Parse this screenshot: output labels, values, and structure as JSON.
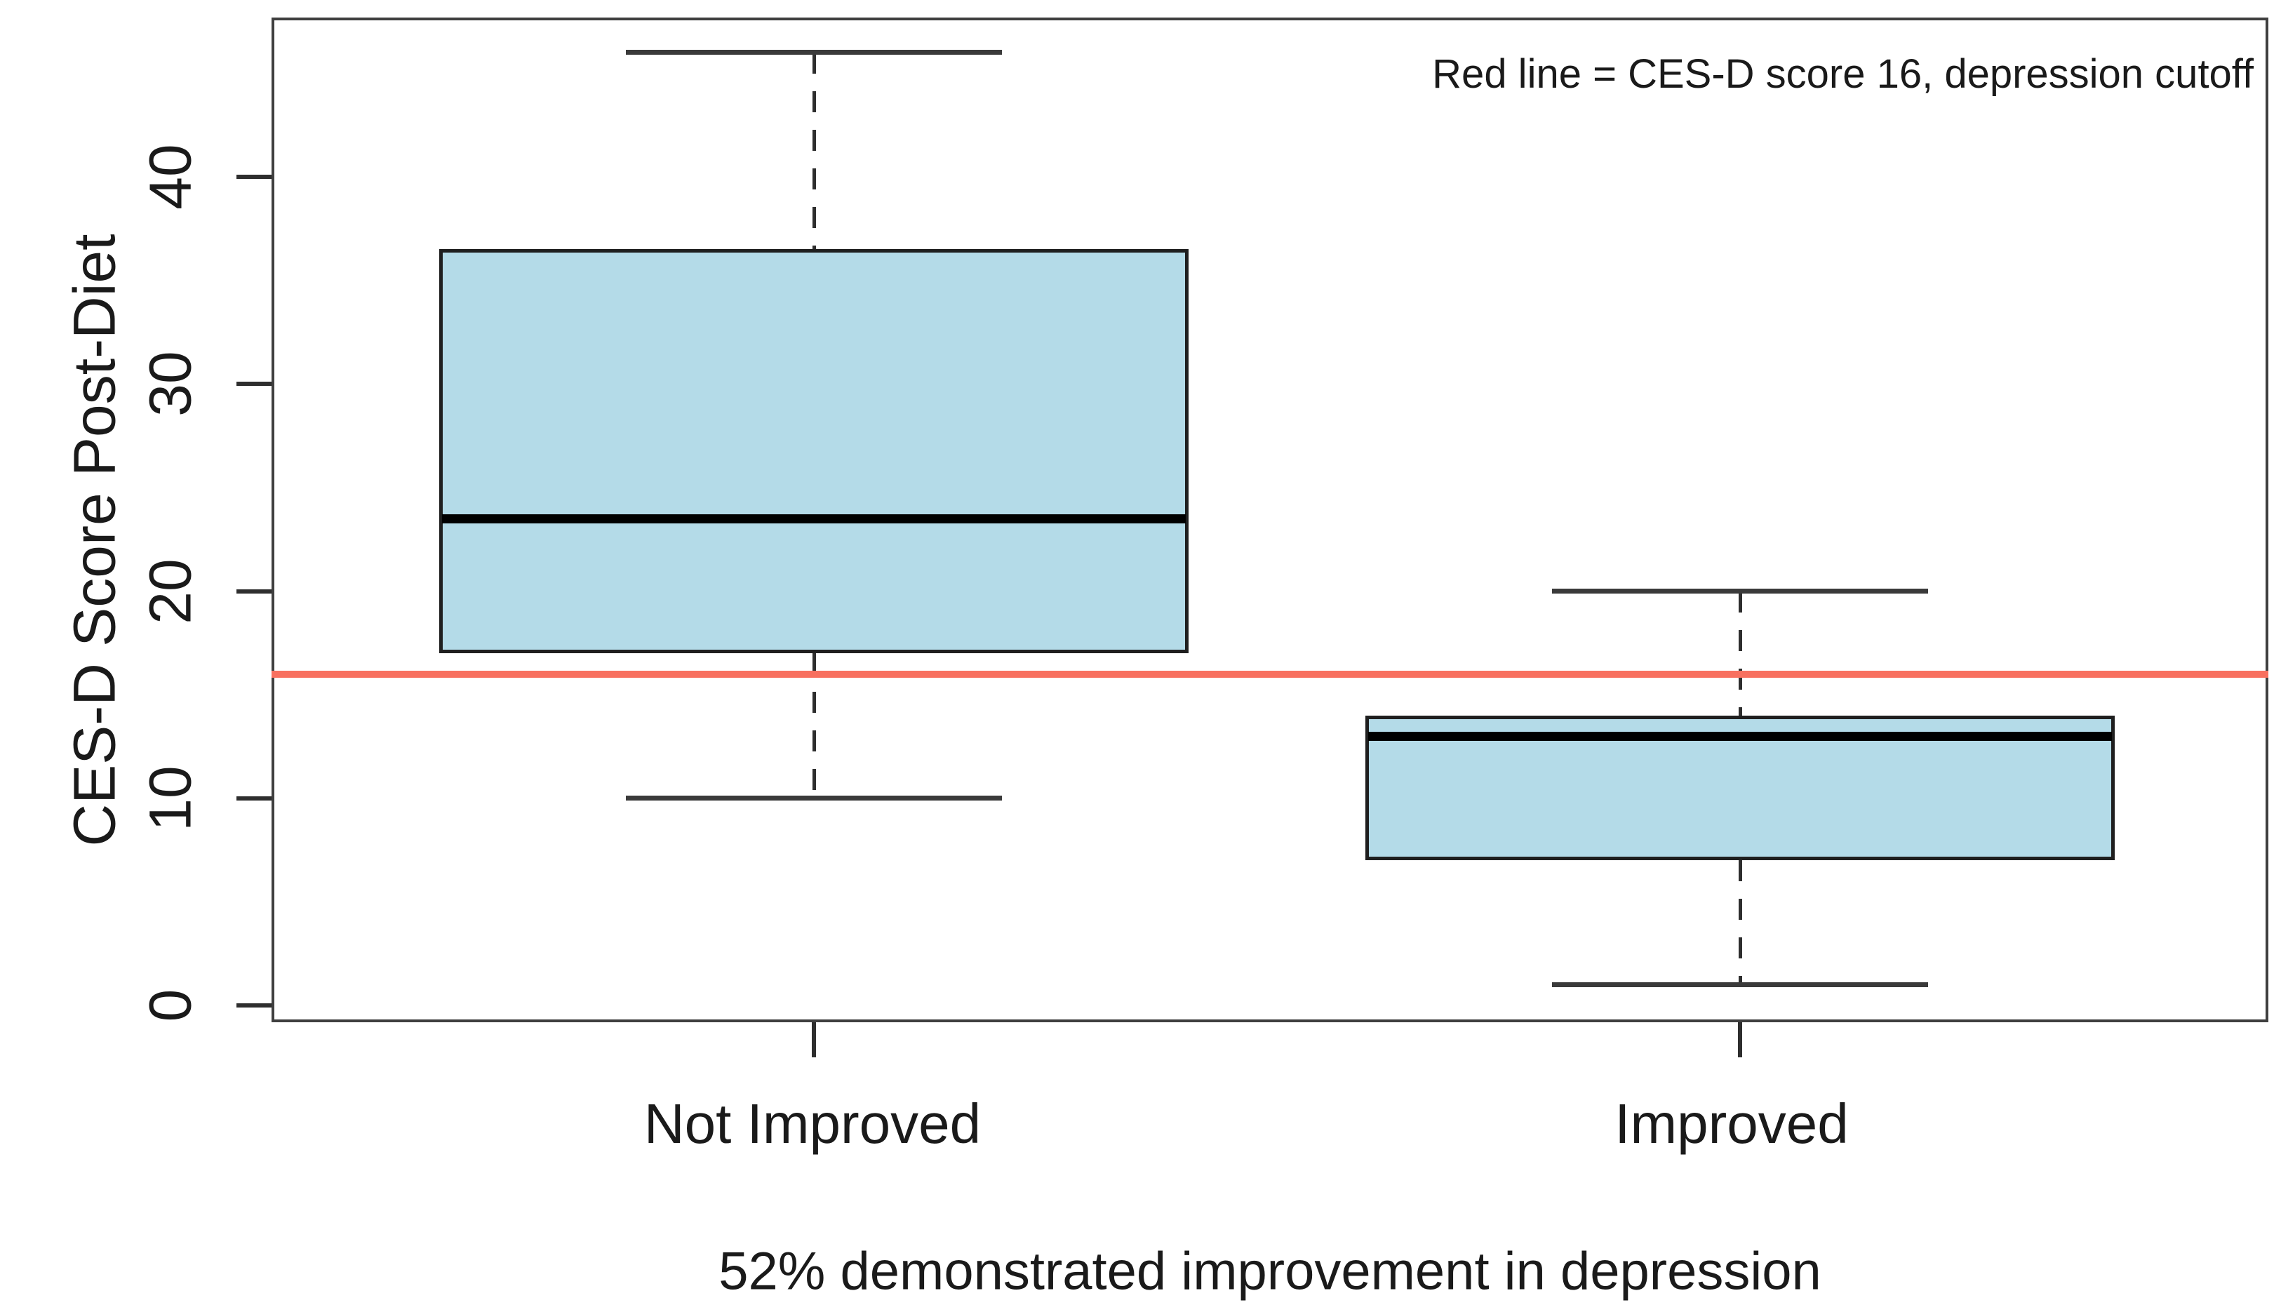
{
  "figure": {
    "legend_note": "Red line = CES-D score 16, depression cutoff",
    "caption": "52% demonstrated improvement in depression",
    "y_axis_title": "CES-D Score Post-Diet"
  },
  "chart_data": {
    "type": "boxplot",
    "title": "",
    "xlabel": "52% demonstrated improvement in depression",
    "ylabel": "CES-D Score Post-Diet",
    "annotation": "Red line = CES-D score 16, depression cutoff",
    "categories": [
      "Not Improved",
      "Improved"
    ],
    "yticks": [
      0,
      10,
      20,
      30,
      40
    ],
    "ylim": [
      -0.8,
      47.7
    ],
    "grid": false,
    "legend_position": "top-right-inside",
    "series": [
      {
        "name": "Not Improved",
        "whisker_low": 10,
        "q1": 17,
        "median": 23.5,
        "q3": 36.5,
        "whisker_high": 46
      },
      {
        "name": "Improved",
        "whisker_low": 1,
        "q1": 7,
        "median": 13,
        "q3": 14,
        "whisker_high": 20
      }
    ],
    "reference_line": {
      "value": 16,
      "meaning": "depression cutoff",
      "color": "#f8705f"
    },
    "colors": {
      "box_fill": "#b4dbe8",
      "box_border": "#1f1f1f",
      "median": "#000000",
      "whisker": "#2e2e2e",
      "frame": "#3f3f3f",
      "text": "#1a1a1a",
      "background": "#ffffff"
    }
  }
}
